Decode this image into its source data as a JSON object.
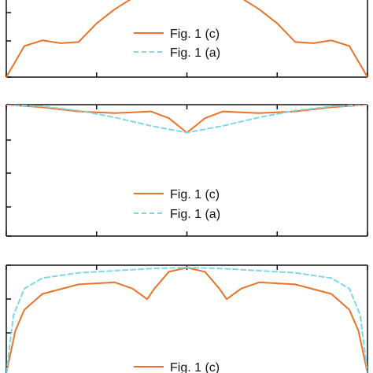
{
  "colors": {
    "fig1c": "#e8732a",
    "fig1a": "#7fd8e4",
    "axis": "#111111"
  },
  "chart_data": [
    {
      "type": "line",
      "panel": "top",
      "series": [
        {
          "name": "Fig. 1 (c)",
          "x": [
            -1.0,
            -0.9,
            -0.8,
            -0.7,
            -0.6,
            -0.5,
            -0.4,
            -0.3,
            -0.2,
            -0.1,
            0.0,
            0.1,
            0.2,
            0.3,
            0.4,
            0.5,
            0.6,
            0.7,
            0.8,
            0.9,
            1.0
          ],
          "y": [
            0.0,
            0.55,
            0.65,
            0.6,
            0.62,
            0.95,
            1.2,
            1.4,
            1.5,
            1.55,
            1.55,
            1.55,
            1.5,
            1.4,
            1.2,
            0.95,
            0.62,
            0.6,
            0.65,
            0.55,
            0.0
          ]
        }
      ],
      "legend": [
        "Fig. 1 (c)",
        "Fig. 1 (a)"
      ],
      "legend_position": "right"
    },
    {
      "type": "line",
      "panel": "middle",
      "series": [
        {
          "name": "Fig. 1 (c)",
          "x": [
            -1.0,
            -0.8,
            -0.6,
            -0.4,
            -0.3,
            -0.2,
            -0.1,
            0.0,
            0.1,
            0.2,
            0.3,
            0.4,
            0.6,
            0.8,
            1.0
          ],
          "y": [
            0.0,
            -0.03,
            -0.08,
            -0.1,
            -0.09,
            -0.08,
            -0.16,
            -0.33,
            -0.16,
            -0.08,
            -0.09,
            -0.1,
            -0.08,
            -0.03,
            0.0
          ]
        },
        {
          "name": "Fig. 1 (a)",
          "x": [
            -1.0,
            -0.8,
            -0.6,
            -0.4,
            -0.2,
            0.0,
            0.2,
            0.4,
            0.6,
            0.8,
            1.0
          ],
          "y": [
            0.0,
            -0.02,
            -0.07,
            -0.15,
            -0.25,
            -0.33,
            -0.25,
            -0.15,
            -0.07,
            -0.02,
            0.0
          ]
        }
      ],
      "legend": [
        "Fig. 1 (c)",
        "Fig. 1 (a)"
      ],
      "legend_position": "bottom-center"
    },
    {
      "type": "line",
      "panel": "bottom",
      "series": [
        {
          "name": "Fig. 1 (c)",
          "x": [
            -1.0,
            -0.95,
            -0.9,
            -0.8,
            -0.6,
            -0.4,
            -0.3,
            -0.22,
            -0.18,
            -0.1,
            0.0,
            0.1,
            0.18,
            0.22,
            0.3,
            0.4,
            0.6,
            0.8,
            0.9,
            0.95,
            1.0
          ],
          "y": [
            0.0,
            0.4,
            0.6,
            0.75,
            0.84,
            0.86,
            0.8,
            0.7,
            0.8,
            0.96,
            1.0,
            0.96,
            0.8,
            0.7,
            0.8,
            0.86,
            0.84,
            0.75,
            0.6,
            0.4,
            0.0
          ]
        },
        {
          "name": "Fig. 1 (a)",
          "x": [
            -1.0,
            -0.96,
            -0.9,
            -0.8,
            -0.6,
            -0.4,
            -0.2,
            0.0,
            0.2,
            0.4,
            0.6,
            0.8,
            0.9,
            0.96,
            1.0
          ],
          "y": [
            0.0,
            0.55,
            0.8,
            0.9,
            0.95,
            0.97,
            0.99,
            1.0,
            0.99,
            0.97,
            0.95,
            0.9,
            0.8,
            0.55,
            0.0
          ]
        }
      ],
      "legend": [
        "Fig. 1 (c)"
      ],
      "legend_position": "bottom-center"
    }
  ]
}
